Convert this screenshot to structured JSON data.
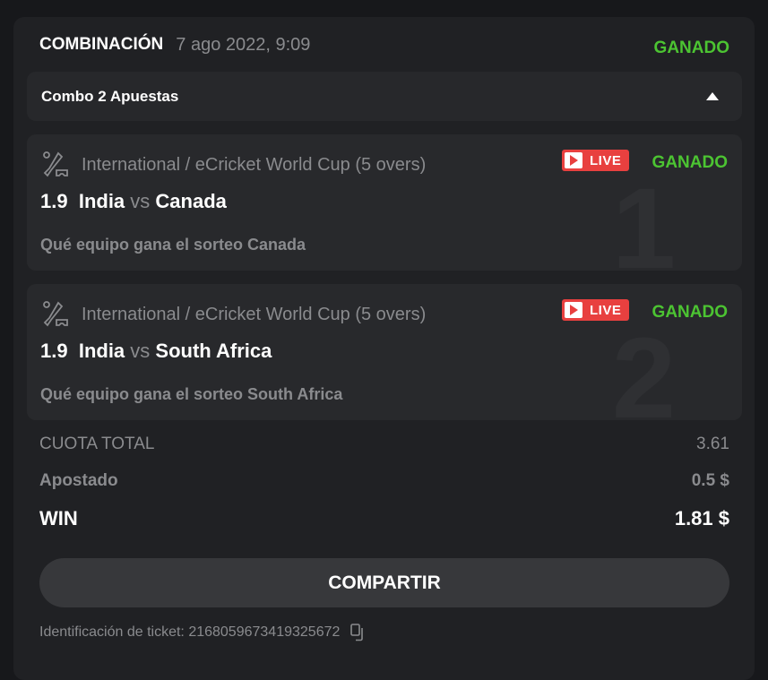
{
  "header": {
    "title": "COMBINACIÓN",
    "date": "7 ago 2022, 9:09",
    "status": "GANADO"
  },
  "combo": {
    "label": "Combo 2 Apuestas",
    "toggle_icon": "caret-up-icon"
  },
  "bets": [
    {
      "index": "1",
      "league": "International / eCricket World Cup (5 overs)",
      "live": "LIVE",
      "status": "GANADO",
      "odds": "1.9",
      "home": "India",
      "vs": "vs",
      "away": "Canada",
      "market": "Qué equipo gana el sorteo Canada"
    },
    {
      "index": "2",
      "league": "International / eCricket World Cup (5 overs)",
      "live": "LIVE",
      "status": "GANADO",
      "odds": "1.9",
      "home": "India",
      "vs": "vs",
      "away": "South Africa",
      "market": "Qué equipo gana el sorteo South Africa"
    }
  ],
  "summary": {
    "total_odds_label": "CUOTA TOTAL",
    "total_odds": "3.61",
    "staked_label": "Apostado",
    "staked": "0.5 $",
    "win_label": "WIN",
    "win": "1.81 $"
  },
  "share_button": "COMPARTIR",
  "ticket": {
    "label": "Identificación de ticket: 2168059673419325672"
  },
  "colors": {
    "won": "#4cc432",
    "live": "#e8403f",
    "background": "#202124"
  }
}
